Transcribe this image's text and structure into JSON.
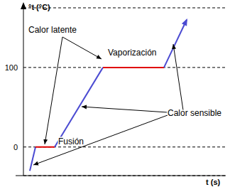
{
  "chart_data": {
    "type": "line",
    "x_label": "t (s)",
    "y_label": "°t (°C)",
    "xlim": [
      0,
      285
    ],
    "ylim": [
      -36,
      175
    ],
    "yticks": [
      0,
      100
    ],
    "tick_labels": "y",
    "grid": true,
    "series": [
      {
        "color": "#4b4bd2",
        "x": [
          9,
          17
        ],
        "values": [
          -30,
          0
        ]
      },
      {
        "color": "#e00000",
        "x": [
          17,
          44
        ],
        "values": [
          0,
          0
        ]
      },
      {
        "color": "#4b4bd2",
        "x": [
          44,
          112
        ],
        "values": [
          0,
          100
        ]
      },
      {
        "color": "#e00000",
        "x": [
          112,
          198
        ],
        "values": [
          100,
          100
        ]
      },
      {
        "color": "#4b4bd2",
        "x": [
          198,
          230
        ],
        "values": [
          100,
          160
        ]
      }
    ],
    "annotations": [
      {
        "text": "Calor latente"
      },
      {
        "text": "Vaporización"
      },
      {
        "text": "Fusión"
      },
      {
        "text": "Calor sensible"
      }
    ]
  }
}
